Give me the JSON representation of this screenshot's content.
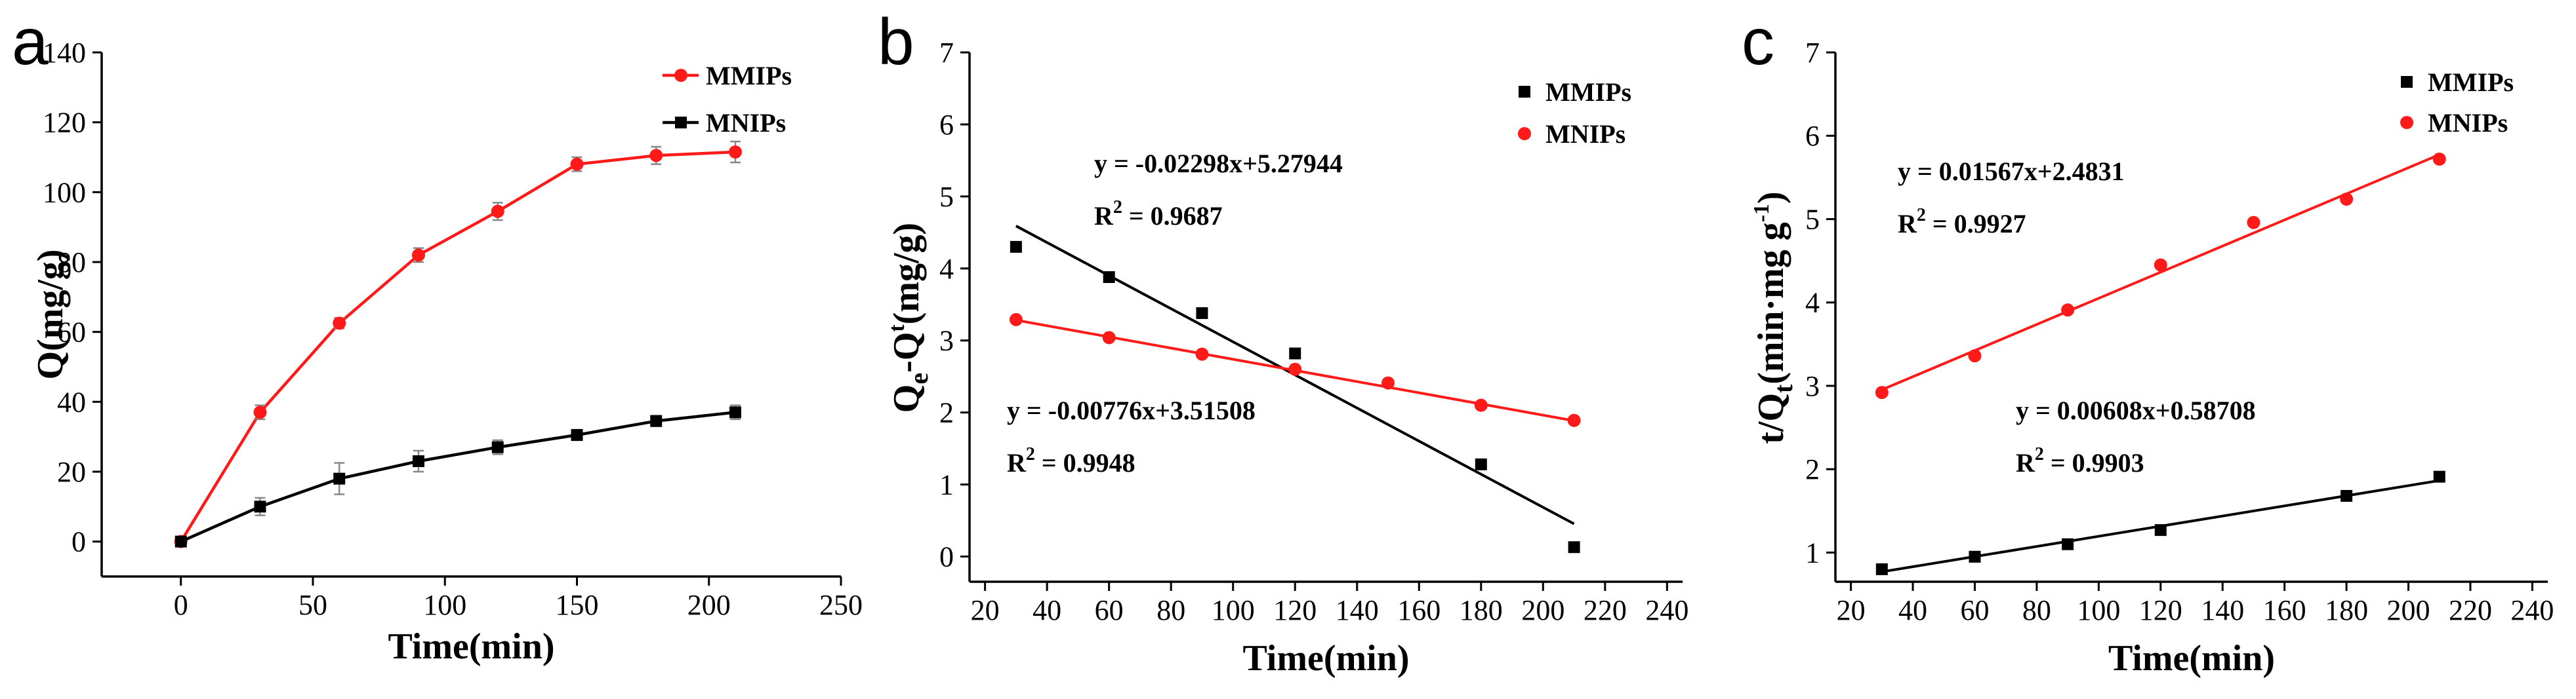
{
  "chart_data": [
    {
      "panel": "a",
      "type": "line",
      "xlabel": "Time(min)",
      "ylabel": "Q(mg/g)",
      "xlim": [
        -30,
        250
      ],
      "ylim": [
        -10,
        140
      ],
      "xticks": [
        0,
        50,
        100,
        150,
        200,
        250
      ],
      "yticks": [
        0,
        20,
        40,
        60,
        80,
        100,
        120,
        140
      ],
      "legend_position": "top-right",
      "series": [
        {
          "name": "MMIPs",
          "color": "#ff1a1a",
          "marker": "circle",
          "x": [
            0,
            30,
            60,
            90,
            120,
            150,
            180,
            210
          ],
          "y": [
            0,
            37,
            62.5,
            82,
            94.5,
            108,
            110.5,
            111.5
          ],
          "err": [
            0,
            2,
            1.5,
            2,
            2.5,
            2,
            2.5,
            3
          ]
        },
        {
          "name": "MNIPs",
          "color": "#000000",
          "marker": "square",
          "x": [
            0,
            30,
            60,
            90,
            120,
            150,
            180,
            210
          ],
          "y": [
            0,
            10,
            18,
            23,
            27,
            30.5,
            34.5,
            37
          ],
          "err": [
            0,
            2.5,
            4.5,
            3,
            2,
            1.5,
            1.5,
            2
          ]
        }
      ]
    },
    {
      "panel": "b",
      "type": "scatter",
      "xlabel": "Time(min)",
      "ylabel_parts": [
        "Q",
        "e",
        "-Q",
        "t",
        "(mg/g)"
      ],
      "xlim": [
        15,
        245
      ],
      "ylim": [
        -0.35,
        7
      ],
      "xticks": [
        20,
        40,
        60,
        80,
        100,
        120,
        140,
        160,
        180,
        200,
        220,
        240
      ],
      "yticks": [
        0,
        1,
        2,
        3,
        4,
        5,
        6,
        7
      ],
      "legend_position": "top-right",
      "series": [
        {
          "name": "MMIPs",
          "color": "#000000",
          "marker": "square",
          "x": [
            30,
            60,
            90,
            120,
            180,
            210
          ],
          "y": [
            4.3,
            3.88,
            3.38,
            2.82,
            1.28,
            0.13
          ],
          "fit": {
            "slope": -0.02298,
            "intercept": 5.27944,
            "x0": 30,
            "x1": 210
          },
          "equation": "y = -0.02298x+5.27944",
          "r2_label": "R",
          "r2_value": " = 0.9687"
        },
        {
          "name": "MNIPs",
          "color": "#ff1a1a",
          "marker": "circle",
          "x": [
            30,
            60,
            90,
            120,
            150,
            180,
            210
          ],
          "y": [
            3.29,
            3.04,
            2.81,
            2.6,
            2.41,
            2.1,
            1.89
          ],
          "fit": {
            "slope": -0.00776,
            "intercept": 3.51508,
            "x0": 30,
            "x1": 210
          },
          "equation": "y = -0.00776x+3.51508",
          "r2_label": "R",
          "r2_value": " = 0.9948"
        }
      ]
    },
    {
      "panel": "c",
      "type": "scatter",
      "xlabel": "Time(min)",
      "ylabel_parts": [
        "t/Q",
        "t",
        "(min·mg g",
        "-1",
        ")"
      ],
      "xlim": [
        15,
        245
      ],
      "ylim": [
        0.65,
        7
      ],
      "xticks": [
        20,
        40,
        60,
        80,
        100,
        120,
        140,
        160,
        180,
        200,
        220,
        240
      ],
      "yticks": [
        1,
        2,
        3,
        4,
        5,
        6,
        7
      ],
      "legend_position": "top-right",
      "series": [
        {
          "name": "MMIPs",
          "color": "#000000",
          "marker": "square",
          "x": [
            30,
            60,
            90,
            120,
            180,
            210
          ],
          "y": [
            0.8,
            0.95,
            1.1,
            1.27,
            1.68,
            1.91
          ],
          "fit": {
            "slope": 0.00608,
            "intercept": 0.58708,
            "x0": 30,
            "x1": 210
          },
          "equation": "y = 0.00608x+0.58708",
          "r2_label": "R",
          "r2_value": " = 0.9903"
        },
        {
          "name": "MNIPs",
          "color": "#ff1a1a",
          "marker": "circle",
          "x": [
            30,
            60,
            90,
            120,
            150,
            180,
            210
          ],
          "y": [
            2.92,
            3.36,
            3.91,
            4.45,
            4.96,
            5.24,
            5.72
          ],
          "fit": {
            "slope": 0.01567,
            "intercept": 2.4831,
            "x0": 30,
            "x1": 210
          },
          "equation": "y = 0.01567x+2.4831",
          "r2_label": "R",
          "r2_value": " = 0.9927"
        }
      ]
    }
  ]
}
